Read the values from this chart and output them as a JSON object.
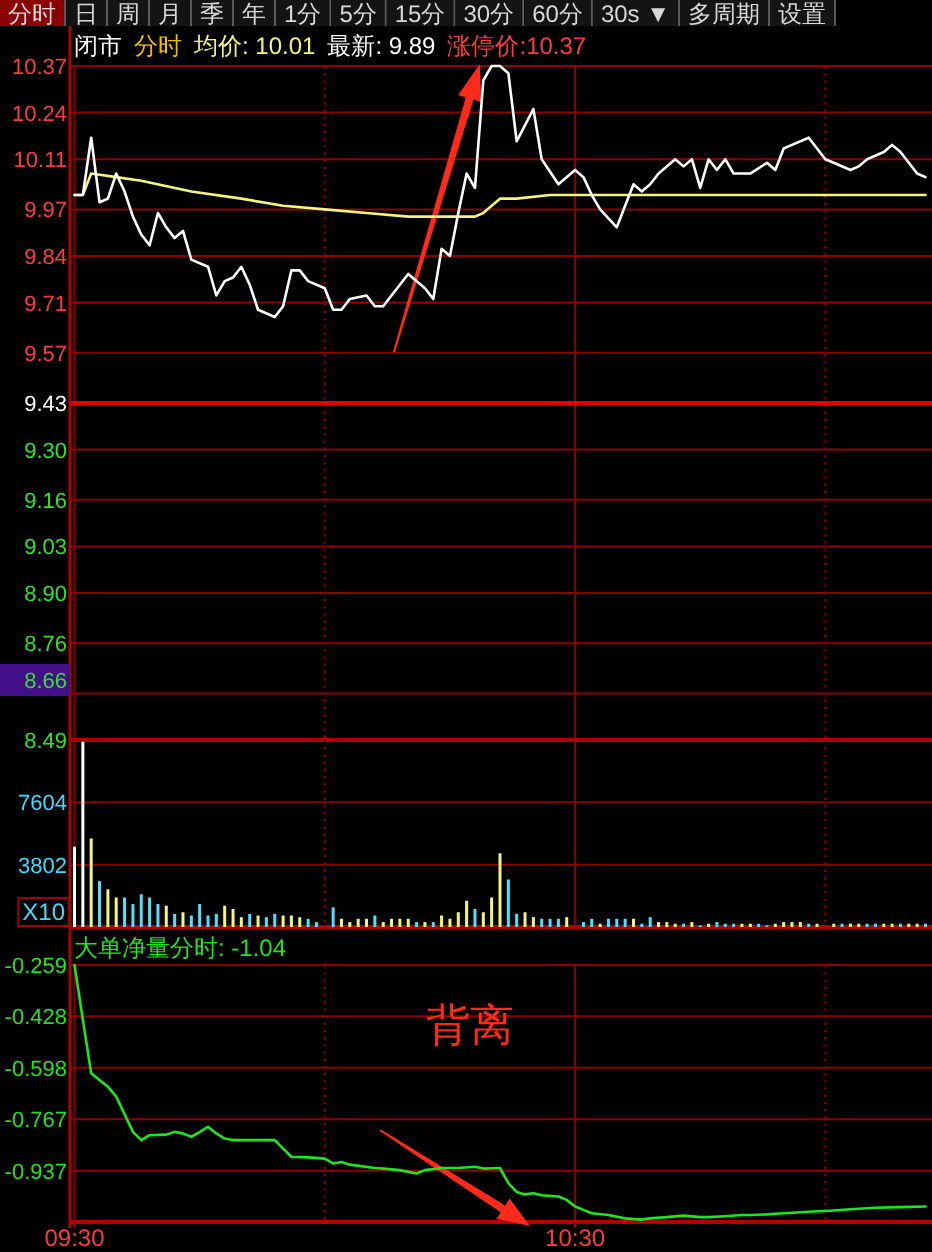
{
  "chart_data": [
    {
      "type": "other",
      "categories": [
        "分时",
        "日",
        "周",
        "月",
        "季",
        "年",
        "1分",
        "5分",
        "15分",
        "30分",
        "60分",
        "30s ▼",
        "多周期",
        "设置"
      ],
      "colors": [
        "#8b0000",
        "#141414",
        "#141414",
        "#141414",
        "#141414",
        "#141414",
        "#141414",
        "#141414",
        "#141414",
        "#141414",
        "#141414",
        "#141414",
        "#141414",
        "#141414"
      ]
    },
    {
      "type": "line",
      "title": "闭市",
      "subtitle": "分时",
      "legend": "top left",
      "grid": true,
      "tick_labels": "y",
      "xlim": [
        9.491,
        11.213
      ],
      "ylim": [
        8.49,
        10.37
      ],
      "xticks": [
        9.5,
        10,
        10.5,
        11
      ],
      "yticks": [
        10.37,
        10.24,
        10.11,
        9.97,
        9.84,
        9.71,
        9.57,
        9.43,
        {
          "value": 9.3,
          "label": "9.30"
        },
        9.16,
        9.03,
        {
          "value": 8.9,
          "label": "8.90"
        },
        8.76,
        {
          "value": 8.62,
          "label": null
        },
        8.49
      ],
      "ref_lines": [
        {
          "axis": "y",
          "value": 9.43,
          "color": "#e60000"
        }
      ],
      "series": [
        {
          "name": "均价: 10.01",
          "color": "#f5f57a",
          "x": [
            9.5,
            9.5167,
            9.5333,
            9.5833,
            9.6333,
            9.7333,
            9.8333,
            9.9167,
            10,
            10.0833,
            10.1667,
            10.2667,
            10.3,
            10.3167,
            10.3333,
            10.35,
            10.3833,
            10.45,
            11.2
          ],
          "values": [
            10.01,
            10.01,
            10.07,
            10.06,
            10.05,
            10.02,
            10,
            9.98,
            9.97,
            9.96,
            9.95,
            9.95,
            9.95,
            9.96,
            9.98,
            10,
            10,
            10.01,
            10.01
          ]
        },
        {
          "name": "最新: 9.89",
          "color": "#ffffff",
          "x": [
            9.5,
            9.5167,
            9.5333,
            9.55,
            9.5667,
            9.5833,
            9.6,
            9.6167,
            9.6333,
            9.65,
            9.6667,
            9.6833,
            9.7,
            9.7167,
            9.7333,
            9.7667,
            9.7833,
            9.8,
            9.8167,
            9.8333,
            9.85,
            9.8667,
            9.9,
            9.9167,
            9.9333,
            9.95,
            9.9667,
            10,
            10.0167,
            10.0333,
            10.05,
            10.0833,
            10.1,
            10.1167,
            10.1333,
            10.1667,
            10.2,
            10.2167,
            10.2333,
            10.25,
            10.2667,
            10.2833,
            10.3,
            10.3167,
            10.3333,
            10.35,
            10.3667,
            10.3833,
            10.4167,
            10.4333,
            10.4667,
            10.5,
            10.5167,
            10.5333,
            10.55,
            10.5833,
            10.6167,
            10.6333,
            10.65,
            10.6667,
            10.7,
            10.7167,
            10.7333,
            10.75,
            10.7667,
            10.7833,
            10.8,
            10.8167,
            10.85,
            10.8833,
            10.9,
            10.9167,
            10.9333,
            10.9667,
            11,
            11.0167,
            11.05,
            11.0667,
            11.0833,
            11.1167,
            11.1333,
            11.15,
            11.1833,
            11.2
          ],
          "values": [
            10.01,
            10.01,
            10.17,
            9.99,
            10,
            10.07,
            10.02,
            9.95,
            9.9,
            9.87,
            9.96,
            9.92,
            9.89,
            9.91,
            9.83,
            9.81,
            9.73,
            9.77,
            9.78,
            9.81,
            9.76,
            9.69,
            9.67,
            9.7,
            9.8,
            9.8,
            9.77,
            9.75,
            9.69,
            9.69,
            9.72,
            9.73,
            9.7,
            9.7,
            9.73,
            9.79,
            9.75,
            9.72,
            9.86,
            9.84,
            9.96,
            10.07,
            10.03,
            10.33,
            10.37,
            10.37,
            10.35,
            10.16,
            10.25,
            10.11,
            10.04,
            10.08,
            10.06,
            10.01,
            9.97,
            9.92,
            10.04,
            10.02,
            10.04,
            10.07,
            10.11,
            10.09,
            10.11,
            10.03,
            10.11,
            10.08,
            10.11,
            10.07,
            10.07,
            10.1,
            10.08,
            10.14,
            10.15,
            10.17,
            10.11,
            10.1,
            10.08,
            10.09,
            10.11,
            10.13,
            10.15,
            10.13,
            10.07,
            10.06
          ]
        }
      ],
      "annotations": [
        "涨停价:10.37",
        "8.66"
      ]
    },
    {
      "type": "bar",
      "ylabel": "X10",
      "grid": true,
      "tick_labels": "y",
      "xlim": [
        9.491,
        11.213
      ],
      "ylim": [
        0,
        11406
      ],
      "xticks": [
        9.5,
        10,
        10.5,
        11
      ],
      "yticks": [
        3802,
        7604
      ],
      "x": [
        9.5,
        9.5167,
        9.5333,
        9.55,
        9.5667,
        9.5833,
        9.6,
        9.6167,
        9.6333,
        9.65,
        9.6667,
        9.6833,
        9.7,
        9.7167,
        9.7333,
        9.75,
        9.7667,
        9.7833,
        9.8,
        9.8167,
        9.8333,
        9.85,
        9.8667,
        9.8833,
        9.9,
        9.9167,
        9.9333,
        9.95,
        9.9667,
        9.9833,
        10.0167,
        10.0333,
        10.05,
        10.0667,
        10.0833,
        10.1,
        10.1167,
        10.1333,
        10.15,
        10.1667,
        10.1833,
        10.2,
        10.2167,
        10.2333,
        10.25,
        10.2667,
        10.2833,
        10.3,
        10.3167,
        10.3333,
        10.35,
        10.3667,
        10.3833,
        10.4,
        10.4167,
        10.4333,
        10.45,
        10.4667,
        10.4833,
        10.5167,
        10.5333,
        10.55,
        10.5667,
        10.5833,
        10.6,
        10.6167,
        10.6333,
        10.65,
        10.6667,
        10.6833,
        10.7,
        10.7167,
        10.7333,
        10.75,
        10.7667,
        10.7833,
        10.8,
        10.8167,
        10.8333,
        10.85,
        10.8667,
        10.8833,
        10.9,
        10.9167,
        10.9333,
        10.95,
        10.9667,
        10.9833,
        11.0167,
        11.0333,
        11.05,
        11.0667,
        11.0833,
        11.1,
        11.1167,
        11.1333,
        11.15,
        11.1667,
        11.1833,
        11.2
      ],
      "values": [
        4900,
        11300,
        5400,
        2800,
        2300,
        1800,
        1800,
        1400,
        2000,
        1800,
        1400,
        1300,
        800,
        900,
        700,
        1400,
        700,
        800,
        1300,
        1100,
        600,
        800,
        700,
        600,
        800,
        700,
        700,
        600,
        500,
        300,
        1200,
        500,
        300,
        500,
        500,
        700,
        300,
        500,
        500,
        500,
        300,
        300,
        300,
        700,
        500,
        900,
        1600,
        1100,
        900,
        1800,
        4500,
        2900,
        800,
        900,
        600,
        500,
        500,
        500,
        600,
        300,
        500,
        200,
        500,
        500,
        500,
        500,
        200,
        600,
        300,
        300,
        200,
        200,
        300,
        100,
        200,
        300,
        200,
        200,
        200,
        200,
        200,
        100,
        200,
        300,
        300,
        300,
        200,
        200,
        200,
        200,
        200,
        200,
        200,
        200,
        200,
        200,
        200,
        200,
        200,
        200
      ],
      "colors": [
        "#ffffff",
        "#ffffff",
        "#f5f57a",
        "#4ee0ff",
        "#f5f57a",
        "#f5f57a",
        "#4ee0ff",
        "#4ee0ff",
        "#4ee0ff",
        "#4ee0ff",
        "#4ee0ff",
        "#f5f57a",
        "#4ee0ff",
        "#f5f57a",
        "#4ee0ff",
        "#4ee0ff",
        "#4ee0ff",
        "#4ee0ff",
        "#f5f57a",
        "#f5f57a",
        "#f5f57a",
        "#4ee0ff",
        "#f5f57a",
        "#4ee0ff",
        "#4ee0ff",
        "#f5f57a",
        "#f5f57a",
        "#f5f57a",
        "#4ee0ff",
        "#4ee0ff",
        "#4ee0ff",
        "#f5f57a",
        "#f5f57a",
        "#f5f57a",
        "#f5f57a",
        "#4ee0ff",
        "#f5f57a",
        "#f5f57a",
        "#f5f57a",
        "#f5f57a",
        "#4ee0ff",
        "#f5f57a",
        "#4ee0ff",
        "#f5f57a",
        "#f5f57a",
        "#f5f57a",
        "#f5f57a",
        "#4ee0ff",
        "#f5f57a",
        "#f5f57a",
        "#f5f57a",
        "#4ee0ff",
        "#4ee0ff",
        "#f5f57a",
        "#f5f57a",
        "#4ee0ff",
        "#4ee0ff",
        "#4ee0ff",
        "#f5f57a",
        "#4ee0ff",
        "#4ee0ff",
        "#f5f57a",
        "#4ee0ff",
        "#4ee0ff",
        "#4ee0ff",
        "#f5f57a",
        "#4ee0ff",
        "#4ee0ff",
        "#f5f57a",
        "#f5f57a",
        "#f5f57a",
        "#4ee0ff",
        "#f5f57a",
        "#4ee0ff",
        "#f5f57a",
        "#4ee0ff",
        "#4ee0ff",
        "#4ee0ff",
        "#f5f57a",
        "#f5f57a",
        "#4ee0ff",
        "#4ee0ff",
        "#f5f57a",
        "#f5f57a",
        "#f5f57a",
        "#f5f57a",
        "#4ee0ff",
        "#f5f57a",
        "#f5f57a",
        "#4ee0ff",
        "#f5f57a",
        "#f5f57a",
        "#4ee0ff",
        "#4ee0ff",
        "#f5f57a",
        "#f5f57a",
        "#4ee0ff",
        "#f5f57a",
        "#f5f57a",
        "#4ee0ff"
      ]
    },
    {
      "type": "line",
      "legend": "top left",
      "grid": true,
      "xlim": [
        9.491,
        11.213
      ],
      "ylim": [
        -1.106,
        -0.259
      ],
      "xticks": [
        {
          "value": 9.5,
          "label": "09:30"
        },
        {
          "value": 10,
          "label": null
        },
        {
          "value": 10.5,
          "label": "10:30"
        },
        {
          "value": 11,
          "label": null
        }
      ],
      "yticks": [
        -0.259,
        -0.428,
        -0.598,
        -0.767,
        -0.937
      ],
      "series": [
        {
          "name": "大单净量分时: -1.04",
          "color": "#1ee61e",
          "x": [
            9.5,
            9.5167,
            9.5333,
            9.55,
            9.5667,
            9.5833,
            9.6,
            9.6167,
            9.6333,
            9.65,
            9.6833,
            9.7,
            9.7167,
            9.7333,
            9.75,
            9.7667,
            9.7833,
            9.8,
            9.8167,
            9.8667,
            9.9,
            9.9167,
            9.9333,
            9.9667,
            10,
            10.0167,
            10.0333,
            10.05,
            10.1,
            10.1167,
            10.15,
            10.1833,
            10.2,
            10.2333,
            10.2667,
            10.3,
            10.3167,
            10.35,
            10.3667,
            10.3833,
            10.4,
            10.4167,
            10.4333,
            10.4667,
            10.4833,
            10.5,
            10.5167,
            10.5333,
            10.5667,
            10.6,
            10.6333,
            10.65,
            10.6833,
            10.7167,
            10.75,
            10.7667,
            10.8,
            10.8333,
            10.85,
            10.8833,
            10.9167,
            10.9667,
            11.0167,
            11.05,
            11.1,
            11.15,
            11.2
          ],
          "values": [
            -0.259,
            -0.439,
            -0.616,
            -0.638,
            -0.66,
            -0.693,
            -0.75,
            -0.809,
            -0.836,
            -0.82,
            -0.818,
            -0.809,
            -0.814,
            -0.825,
            -0.81,
            -0.792,
            -0.814,
            -0.831,
            -0.836,
            -0.836,
            -0.836,
            -0.864,
            -0.891,
            -0.893,
            -0.897,
            -0.913,
            -0.908,
            -0.917,
            -0.928,
            -0.93,
            -0.935,
            -0.946,
            -0.935,
            -0.928,
            -0.928,
            -0.924,
            -0.93,
            -0.928,
            -0.978,
            -1.007,
            -1.015,
            -1.011,
            -1.018,
            -1.022,
            -1.033,
            -1.055,
            -1.066,
            -1.077,
            -1.083,
            -1.094,
            -1.098,
            -1.094,
            -1.09,
            -1.085,
            -1.09,
            -1.09,
            -1.087,
            -1.083,
            -1.083,
            -1.081,
            -1.077,
            -1.072,
            -1.068,
            -1.064,
            -1.059,
            -1.057,
            -1.055
          ]
        }
      ],
      "annotations": [
        "背离"
      ]
    }
  ]
}
